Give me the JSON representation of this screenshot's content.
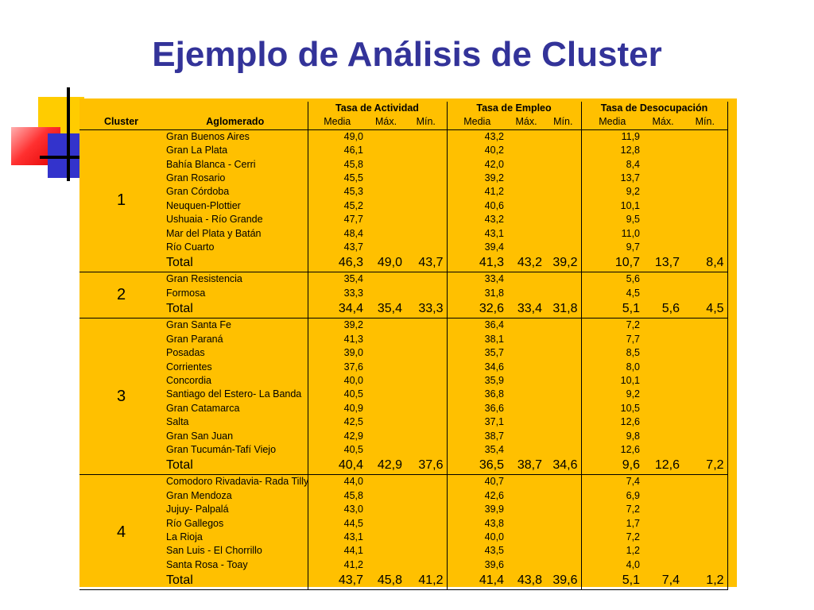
{
  "title": "Ejemplo de Análisis de Cluster",
  "table": {
    "group_headers": {
      "actividad": "Tasa de Actividad",
      "empleo": "Tasa de Empleo",
      "desocupacion": "Tasa de Desocupación"
    },
    "col_headers": {
      "cluster": "Cluster",
      "aglomerado": "Aglomerado",
      "media": "Media",
      "max": "Máx.",
      "min": "Mín."
    },
    "total_label": "Total",
    "clusters": [
      {
        "id": "1",
        "rows": [
          {
            "name": "Gran Buenos Aires",
            "act": "49,0",
            "emp": "43,2",
            "des": "11,9"
          },
          {
            "name": "Gran La Plata",
            "act": "46,1",
            "emp": "40,2",
            "des": "12,8"
          },
          {
            "name": "Bahía Blanca - Cerri",
            "act": "45,8",
            "emp": "42,0",
            "des": "8,4"
          },
          {
            "name": "Gran Rosario",
            "act": "45,5",
            "emp": "39,2",
            "des": "13,7"
          },
          {
            "name": "Gran Córdoba",
            "act": "45,3",
            "emp": "41,2",
            "des": "9,2"
          },
          {
            "name": "Neuquen-Plottier",
            "act": "45,2",
            "emp": "40,6",
            "des": "10,1"
          },
          {
            "name": "Ushuaia - Río Grande",
            "act": "47,7",
            "emp": "43,2",
            "des": "9,5"
          },
          {
            "name": "Mar del Plata y Batán",
            "act": "48,4",
            "emp": "43,1",
            "des": "11,0"
          },
          {
            "name": "Río Cuarto",
            "act": "43,7",
            "emp": "39,4",
            "des": "9,7"
          }
        ],
        "total": {
          "act": [
            "46,3",
            "49,0",
            "43,7"
          ],
          "emp": [
            "41,3",
            "43,2",
            "39,2"
          ],
          "des": [
            "10,7",
            "13,7",
            "8,4"
          ]
        }
      },
      {
        "id": "2",
        "rows": [
          {
            "name": "Gran Resistencia",
            "act": "35,4",
            "emp": "33,4",
            "des": "5,6"
          },
          {
            "name": "Formosa",
            "act": "33,3",
            "emp": "31,8",
            "des": "4,5"
          }
        ],
        "total": {
          "act": [
            "34,4",
            "35,4",
            "33,3"
          ],
          "emp": [
            "32,6",
            "33,4",
            "31,8"
          ],
          "des": [
            "5,1",
            "5,6",
            "4,5"
          ]
        }
      },
      {
        "id": "3",
        "rows": [
          {
            "name": "Gran Santa Fe",
            "act": "39,2",
            "emp": "36,4",
            "des": "7,2"
          },
          {
            "name": "Gran Paraná",
            "act": "41,3",
            "emp": "38,1",
            "des": "7,7"
          },
          {
            "name": "Posadas",
            "act": "39,0",
            "emp": "35,7",
            "des": "8,5"
          },
          {
            "name": "Corrientes",
            "act": "37,6",
            "emp": "34,6",
            "des": "8,0"
          },
          {
            "name": "Concordia",
            "act": "40,0",
            "emp": "35,9",
            "des": "10,1"
          },
          {
            "name": "Santiago del Estero- La Banda",
            "act": "40,5",
            "emp": "36,8",
            "des": "9,2"
          },
          {
            "name": "Gran Catamarca",
            "act": "40,9",
            "emp": "36,6",
            "des": "10,5"
          },
          {
            "name": "Salta",
            "act": "42,5",
            "emp": "37,1",
            "des": "12,6"
          },
          {
            "name": "Gran San Juan",
            "act": "42,9",
            "emp": "38,7",
            "des": "9,8"
          },
          {
            "name": "Gran Tucumán-Tafí Viejo",
            "act": "40,5",
            "emp": "35,4",
            "des": "12,6"
          }
        ],
        "total": {
          "act": [
            "40,4",
            "42,9",
            "37,6"
          ],
          "emp": [
            "36,5",
            "38,7",
            "34,6"
          ],
          "des": [
            "9,6",
            "12,6",
            "7,2"
          ]
        }
      },
      {
        "id": "4",
        "rows": [
          {
            "name": "Comodoro Rivadavia- Rada Tilly",
            "act": "44,0",
            "emp": "40,7",
            "des": "7,4"
          },
          {
            "name": "Gran Mendoza",
            "act": "45,8",
            "emp": "42,6",
            "des": "6,9"
          },
          {
            "name": "Jujuy- Palpalá",
            "act": "43,0",
            "emp": "39,9",
            "des": "7,2"
          },
          {
            "name": "Río Gallegos",
            "act": "44,5",
            "emp": "43,8",
            "des": "1,7"
          },
          {
            "name": "La Rioja",
            "act": "43,1",
            "emp": "40,0",
            "des": "7,2"
          },
          {
            "name": "San Luis - El Chorrillo",
            "act": "44,1",
            "emp": "43,5",
            "des": "1,2"
          },
          {
            "name": "Santa Rosa - Toay",
            "act": "41,2",
            "emp": "39,6",
            "des": "4,0"
          }
        ],
        "total": {
          "act": [
            "43,7",
            "45,8",
            "41,2"
          ],
          "emp": [
            "41,4",
            "43,8",
            "39,6"
          ],
          "des": [
            "5,1",
            "7,4",
            "1,2"
          ]
        }
      }
    ]
  }
}
